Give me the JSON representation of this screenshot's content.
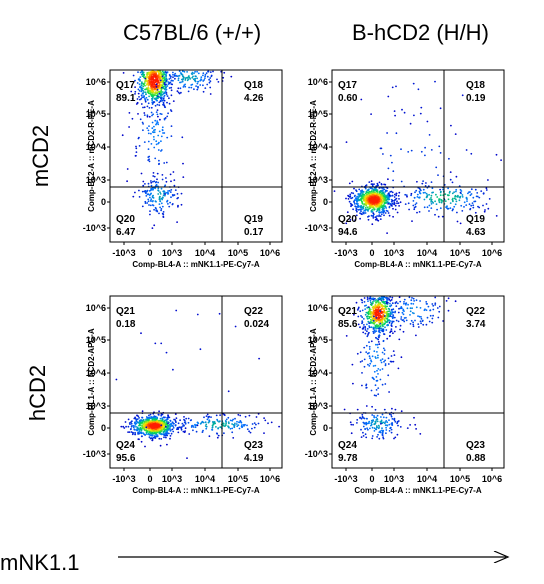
{
  "column_titles": [
    "C57BL/6 (+/+)",
    "B-hCD2 (H/H)"
  ],
  "row_labels": [
    "mCD2",
    "hCD2"
  ],
  "bottom_label": "mNK1.1",
  "chart_data": [
    {
      "type": "scatter",
      "xlabel": "Comp-BL4-A :: mNK1.1-PE-Cy7-A",
      "ylabel": "Comp-BL2-A :: mCD2-R-PE-A",
      "x_ticks": [
        "-10^3",
        "0",
        "10^3",
        "10^4",
        "10^5",
        "10^6"
      ],
      "y_ticks": [
        "-10^3",
        "0",
        "10^3",
        "10^4",
        "10^5",
        "10^6"
      ],
      "quadrants": [
        {
          "name": "Q17",
          "value": "89.1"
        },
        {
          "name": "Q18",
          "value": "4.26"
        },
        {
          "name": "Q20",
          "value": "6.47"
        },
        {
          "name": "Q19",
          "value": "0.17"
        }
      ],
      "populations": [
        {
          "cx": 0.2,
          "cy": 4.0,
          "sx": 0.35,
          "sy": 0.35,
          "n": 700
        },
        {
          "cx": 1.5,
          "cy": 4.1,
          "sx": 0.45,
          "sy": 0.25,
          "n": 160
        },
        {
          "cx": 0.4,
          "cy": 0.3,
          "sx": 0.45,
          "sy": 0.45,
          "n": 160
        },
        {
          "cx": 0.3,
          "cy": 2.4,
          "sx": 0.5,
          "sy": 0.7,
          "n": 120
        }
      ]
    },
    {
      "type": "scatter",
      "xlabel": "Comp-BL4-A :: mNK1.1-PE-Cy7-A",
      "ylabel": "Comp-BL2-A :: mCD2-R-PE-A",
      "x_ticks": [
        "-10^3",
        "0",
        "10^3",
        "10^4",
        "10^5",
        "10^6"
      ],
      "y_ticks": [
        "-10^3",
        "0",
        "10^3",
        "10^4",
        "10^5",
        "10^6"
      ],
      "quadrants": [
        {
          "name": "Q17",
          "value": "0.60"
        },
        {
          "name": "Q18",
          "value": "0.19"
        },
        {
          "name": "Q20",
          "value": "94.6"
        },
        {
          "name": "Q19",
          "value": "4.63"
        }
      ],
      "populations": [
        {
          "cx": 0.1,
          "cy": 0.1,
          "sx": 0.4,
          "sy": 0.3,
          "n": 800
        },
        {
          "cx": 2.5,
          "cy": 0.2,
          "sx": 0.7,
          "sy": 0.35,
          "n": 200
        },
        {
          "cx": 1.5,
          "cy": 1.5,
          "sx": 1.2,
          "sy": 1.0,
          "n": 60
        },
        {
          "cx": 2.0,
          "cy": 3.8,
          "sx": 1.0,
          "sy": 0.8,
          "n": 25
        }
      ]
    },
    {
      "type": "scatter",
      "xlabel": "Comp-BL4-A :: mNK1.1-PE-Cy7-A",
      "ylabel": "Comp-RL1-A :: hCD2-APC-A",
      "x_ticks": [
        "-10^3",
        "0",
        "10^3",
        "10^4",
        "10^5",
        "10^6"
      ],
      "y_ticks": [
        "-10^3",
        "0",
        "10^3",
        "10^4",
        "10^5",
        "10^6"
      ],
      "quadrants": [
        {
          "name": "Q21",
          "value": "0.18"
        },
        {
          "name": "Q22",
          "value": "0.024"
        },
        {
          "name": "Q24",
          "value": "95.6"
        },
        {
          "name": "Q23",
          "value": "4.19"
        }
      ],
      "populations": [
        {
          "cx": 0.2,
          "cy": 0.1,
          "sx": 0.45,
          "sy": 0.22,
          "n": 800
        },
        {
          "cx": 2.4,
          "cy": 0.15,
          "sx": 0.7,
          "sy": 0.22,
          "n": 180
        },
        {
          "cx": 1.5,
          "cy": 2.5,
          "sx": 1.4,
          "sy": 1.4,
          "n": 20
        }
      ]
    },
    {
      "type": "scatter",
      "xlabel": "Comp-BL4-A :: mNK1.1-PE-Cy7-A",
      "ylabel": "Comp-RL1-A :: hCD2-APC-A",
      "x_ticks": [
        "-10^3",
        "0",
        "10^3",
        "10^4",
        "10^5",
        "10^6"
      ],
      "y_ticks": [
        "-10^3",
        "0",
        "10^3",
        "10^4",
        "10^5",
        "10^6"
      ],
      "quadrants": [
        {
          "name": "Q21",
          "value": "85.6"
        },
        {
          "name": "Q22",
          "value": "3.74"
        },
        {
          "name": "Q24",
          "value": "9.78"
        },
        {
          "name": "Q23",
          "value": "0.88"
        }
      ],
      "populations": [
        {
          "cx": 0.3,
          "cy": 4.55,
          "sx": 0.35,
          "sy": 0.15,
          "n": 420
        },
        {
          "cx": 0.3,
          "cy": 3.8,
          "sx": 0.35,
          "sy": 0.3,
          "n": 480
        },
        {
          "cx": 1.6,
          "cy": 3.9,
          "sx": 0.5,
          "sy": 0.3,
          "n": 130
        },
        {
          "cx": 0.3,
          "cy": 0.2,
          "sx": 0.5,
          "sy": 0.35,
          "n": 160
        },
        {
          "cx": 0.2,
          "cy": 2.4,
          "sx": 0.4,
          "sy": 0.8,
          "n": 120
        }
      ]
    }
  ]
}
